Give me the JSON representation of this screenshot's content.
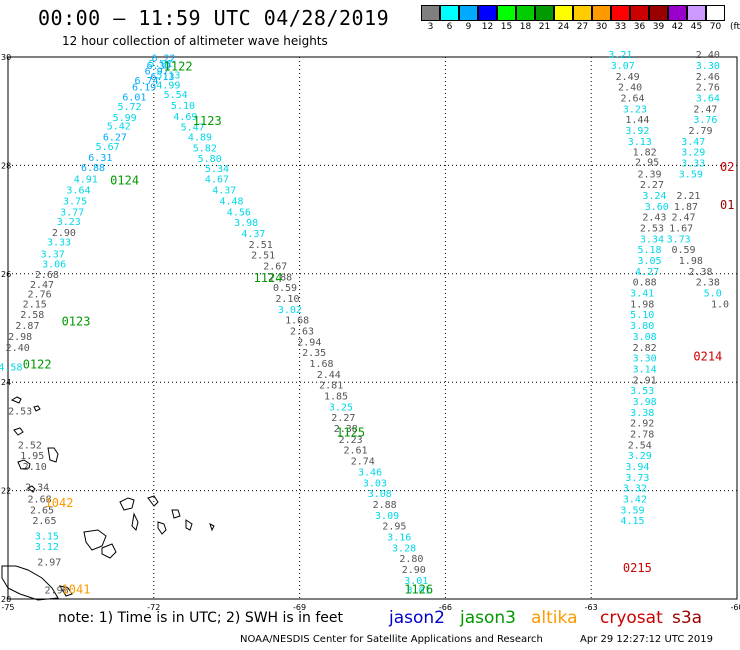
{
  "header": {
    "title": "00:00 – 11:59 UTC 04/28/2019",
    "subtitle": "12 hour collection of altimeter wave heights"
  },
  "color_scale": {
    "labels": [
      "3",
      "6",
      "9",
      "12",
      "15",
      "18",
      "21",
      "24",
      "27",
      "30",
      "33",
      "36",
      "39",
      "42",
      "45",
      "70"
    ],
    "unit": "(ft)",
    "colors": [
      "#7f7f7f",
      "#00ffff",
      "#00aaff",
      "#0000ff",
      "#00ff00",
      "#00cc00",
      "#009900",
      "#ffff00",
      "#ffcc00",
      "#ff9900",
      "#ff0000",
      "#cc0000",
      "#990000",
      "#9900cc",
      "#cc99ff",
      "#ffffff"
    ]
  },
  "axes": {
    "lat_labels": [
      "30",
      "28",
      "26",
      "24",
      "22",
      "20"
    ],
    "lon_labels": [
      "-75",
      "-72",
      "-69",
      "-66",
      "-63",
      "-60"
    ]
  },
  "satellites": [
    {
      "name": "jason2",
      "color": "#0000cc"
    },
    {
      "name": "jason3",
      "color": "#009900"
    },
    {
      "name": "altika",
      "color": "#ff9900"
    },
    {
      "name": "cryosat",
      "color": "#cc0000"
    },
    {
      "name": "s3a",
      "color": "#990000"
    }
  ],
  "footer": {
    "note": "note: 1) Time is in UTC; 2) SWH is in feet",
    "credit": "NOAA/NESDIS Center for Satellite Applications and Research",
    "stamp": "Apr 29 12:27:12 UTC 2019"
  },
  "chart_data": {
    "type": "scatter",
    "title": "00:00 – 11:59 UTC 04/28/2019",
    "subtitle": "12 hour collection of altimeter wave heights",
    "xlabel": "",
    "ylabel": "",
    "xlim": [
      -75,
      -60
    ],
    "ylim": [
      20,
      30
    ],
    "grid": true,
    "time_labels": [
      {
        "text": "1122",
        "lon": -71.5,
        "lat": 29.75,
        "color": "#009900"
      },
      {
        "text": "1123",
        "lon": -70.9,
        "lat": 28.75,
        "color": "#009900"
      },
      {
        "text": "0124",
        "lon": -72.6,
        "lat": 27.65,
        "color": "#009900"
      },
      {
        "text": "1124",
        "lon": -69.65,
        "lat": 25.85,
        "color": "#009900"
      },
      {
        "text": "0123",
        "lon": -73.6,
        "lat": 25.05,
        "color": "#009900"
      },
      {
        "text": "0122",
        "lon": -74.4,
        "lat": 24.25,
        "color": "#009900"
      },
      {
        "text": "1125",
        "lon": -67.95,
        "lat": 23.0,
        "color": "#009900"
      },
      {
        "text": "1042",
        "lon": -73.95,
        "lat": 21.7,
        "color": "#ff9900"
      },
      {
        "text": "1041",
        "lon": -73.6,
        "lat": 20.1,
        "color": "#ff9900"
      },
      {
        "text": "1126",
        "lon": -66.55,
        "lat": 20.1,
        "color": "#009900"
      },
      {
        "text": "0215",
        "lon": -62.05,
        "lat": 20.5,
        "color": "#cc0000"
      },
      {
        "text": "0214",
        "lon": -60.6,
        "lat": 24.4,
        "color": "#cc0000"
      },
      {
        "text": "02",
        "lon": -60.2,
        "lat": 27.9,
        "color": "#cc0000"
      },
      {
        "text": "01",
        "lon": -60.2,
        "lat": 27.2,
        "color": "#990000"
      }
    ],
    "series": [
      {
        "name": "jason3 ascending pass (0122-0124)",
        "color_mode": "swh",
        "points": [
          [
            -71.8,
            29.92,
            "6.22"
          ],
          [
            -71.86,
            29.82,
            "5.91"
          ],
          [
            -71.9,
            29.78,
            "6.30"
          ],
          [
            -71.94,
            29.68,
            "6.97"
          ],
          [
            -71.82,
            29.58,
            "6.13"
          ],
          [
            -72.15,
            29.5,
            "6.74"
          ],
          [
            -72.2,
            29.38,
            "6.19"
          ],
          [
            -72.4,
            29.2,
            "6.01"
          ],
          [
            -72.5,
            29.02,
            "5.72"
          ],
          [
            -72.6,
            28.82,
            "5.99"
          ],
          [
            -72.72,
            28.66,
            "5.42"
          ],
          [
            -72.8,
            28.46,
            "6.27"
          ],
          [
            -72.95,
            28.28,
            "5.67"
          ],
          [
            -73.1,
            28.08,
            "6.31"
          ],
          [
            -73.25,
            27.9,
            "6.88"
          ],
          [
            -73.4,
            27.68,
            "4.91"
          ],
          [
            -73.55,
            27.48,
            "3.64"
          ],
          [
            -73.62,
            27.28,
            "3.75"
          ],
          [
            -73.68,
            27.08,
            "3.77"
          ],
          [
            -73.75,
            26.9,
            "3.23"
          ],
          [
            -73.85,
            26.7,
            "2.90"
          ],
          [
            -73.95,
            26.52,
            "3.33"
          ],
          [
            -74.08,
            26.3,
            "3.37"
          ],
          [
            -74.05,
            26.12,
            "3.06"
          ],
          [
            -74.2,
            25.92,
            "2.68"
          ],
          [
            -74.3,
            25.74,
            "2.47"
          ],
          [
            -74.35,
            25.56,
            "2.76"
          ],
          [
            -74.45,
            25.38,
            "2.15"
          ],
          [
            -74.5,
            25.18,
            "2.58"
          ],
          [
            -74.6,
            24.98,
            "2.87"
          ],
          [
            -74.75,
            24.78,
            "2.98"
          ],
          [
            -74.8,
            24.58,
            "2.40"
          ],
          [
            -74.95,
            24.22,
            "4.58"
          ]
        ]
      },
      {
        "name": "jason3 descending pass (1122-1126)",
        "color_mode": "swh",
        "points": [
          [
            -71.7,
            29.6,
            "5.13"
          ],
          [
            -71.7,
            29.42,
            "4.99"
          ],
          [
            -71.55,
            29.24,
            "5.54"
          ],
          [
            -71.4,
            29.04,
            "5.10"
          ],
          [
            -71.35,
            28.84,
            "4.69"
          ],
          [
            -71.2,
            28.64,
            "5.47"
          ],
          [
            -71.05,
            28.46,
            "4.89"
          ],
          [
            -70.95,
            28.26,
            "5.82"
          ],
          [
            -70.85,
            28.06,
            "5.80"
          ],
          [
            -70.7,
            27.88,
            "5.34"
          ],
          [
            -70.7,
            27.68,
            "4.67"
          ],
          [
            -70.55,
            27.48,
            "4.37"
          ],
          [
            -70.4,
            27.28,
            "4.48"
          ],
          [
            -70.25,
            27.08,
            "4.56"
          ],
          [
            -70.1,
            26.88,
            "3.98"
          ],
          [
            -69.95,
            26.68,
            "4.37"
          ],
          [
            -69.8,
            26.48,
            "2.51"
          ],
          [
            -69.75,
            26.28,
            "2.51"
          ],
          [
            -69.5,
            26.08,
            "2.67"
          ],
          [
            -69.4,
            25.88,
            "2.88"
          ],
          [
            -69.3,
            25.68,
            "0.59"
          ],
          [
            -69.25,
            25.48,
            "2.10"
          ],
          [
            -69.2,
            25.28,
            "3.02"
          ],
          [
            -69.05,
            25.08,
            "1.68"
          ],
          [
            -68.95,
            24.88,
            "2.63"
          ],
          [
            -68.8,
            24.68,
            "2.94"
          ],
          [
            -68.7,
            24.48,
            "2.35"
          ],
          [
            -68.55,
            24.28,
            "1.68"
          ],
          [
            -68.4,
            24.08,
            "2.44"
          ],
          [
            -68.35,
            23.88,
            "2.81"
          ],
          [
            -68.25,
            23.68,
            "1.85"
          ],
          [
            -68.15,
            23.48,
            "3.25"
          ],
          [
            -68.1,
            23.28,
            "2.27"
          ],
          [
            -68.05,
            23.08,
            "2.38"
          ],
          [
            -67.95,
            22.88,
            "2.23"
          ],
          [
            -67.85,
            22.68,
            "2.61"
          ],
          [
            -67.7,
            22.48,
            "2.74"
          ],
          [
            -67.55,
            22.28,
            "3.46"
          ],
          [
            -67.45,
            22.08,
            "3.03"
          ],
          [
            -67.35,
            21.88,
            "3.08"
          ],
          [
            -67.25,
            21.68,
            "2.88"
          ],
          [
            -67.2,
            21.48,
            "3.09"
          ],
          [
            -67.05,
            21.28,
            "2.95"
          ],
          [
            -66.95,
            21.08,
            "3.16"
          ],
          [
            -66.85,
            20.88,
            "3.28"
          ],
          [
            -66.7,
            20.68,
            "2.80"
          ],
          [
            -66.65,
            20.48,
            "2.90"
          ],
          [
            -66.6,
            20.28,
            "3.01"
          ],
          [
            -66.55,
            20.1,
            "3.01"
          ]
        ]
      },
      {
        "name": "altika pass (1041-1042)",
        "color_mode": "swh",
        "points": [
          [
            -74.75,
            23.4,
            "2.53"
          ],
          [
            -74.55,
            22.78,
            "2.52"
          ],
          [
            -74.5,
            22.58,
            "1.95"
          ],
          [
            -74.45,
            22.38,
            "2.10"
          ],
          [
            -74.4,
            22.0,
            "2.34"
          ],
          [
            -74.35,
            21.78,
            "2.68"
          ],
          [
            -74.3,
            21.58,
            "2.65"
          ],
          [
            -74.25,
            21.38,
            "2.65"
          ],
          [
            -74.2,
            21.1,
            "3.15"
          ],
          [
            -74.2,
            20.9,
            "3.12"
          ],
          [
            -74.15,
            20.62,
            "2.97"
          ],
          [
            -74.0,
            20.1,
            "2.96"
          ]
        ]
      },
      {
        "name": "east pass (0214-0215)",
        "color_mode": "swh",
        "points": [
          [
            -62.4,
            29.98,
            "3.21"
          ],
          [
            -62.35,
            29.78,
            "3.07"
          ],
          [
            -62.25,
            29.58,
            "2.49"
          ],
          [
            -62.2,
            29.38,
            "2.40"
          ],
          [
            -62.15,
            29.18,
            "2.64"
          ],
          [
            -62.1,
            28.98,
            "3.23"
          ],
          [
            -62.05,
            28.78,
            "1.44"
          ],
          [
            -62.05,
            28.58,
            "3.92"
          ],
          [
            -62.0,
            28.38,
            "3.13"
          ],
          [
            -61.9,
            28.18,
            "1.82"
          ],
          [
            -61.85,
            28.0,
            "2.95"
          ],
          [
            -61.8,
            27.78,
            "2.39"
          ],
          [
            -61.75,
            27.58,
            "2.27"
          ],
          [
            -61.7,
            27.38,
            "3.24"
          ],
          [
            -61.65,
            27.18,
            "3.60"
          ],
          [
            -61.7,
            26.98,
            "2.43"
          ],
          [
            -61.75,
            26.78,
            "2.53"
          ],
          [
            -61.75,
            26.58,
            "3.34"
          ],
          [
            -61.8,
            26.38,
            "5.18"
          ],
          [
            -61.8,
            26.18,
            "3.05"
          ],
          [
            -61.85,
            25.98,
            "4.27"
          ],
          [
            -61.9,
            25.78,
            "0.88"
          ],
          [
            -61.95,
            25.58,
            "3.41"
          ],
          [
            -61.95,
            25.38,
            "1.98"
          ],
          [
            -61.95,
            25.18,
            "5.10"
          ],
          [
            -61.95,
            24.98,
            "3.80"
          ],
          [
            -61.9,
            24.78,
            "3.08"
          ],
          [
            -61.9,
            24.58,
            "2.82"
          ],
          [
            -61.9,
            24.38,
            "3.30"
          ],
          [
            -61.9,
            24.18,
            "3.14"
          ],
          [
            -61.9,
            23.98,
            "2.91"
          ],
          [
            -61.95,
            23.78,
            "3.53"
          ],
          [
            -61.9,
            23.58,
            "3.98"
          ],
          [
            -61.95,
            23.38,
            "3.38"
          ],
          [
            -61.95,
            23.18,
            "2.92"
          ],
          [
            -61.95,
            22.98,
            "2.78"
          ],
          [
            -62.0,
            22.78,
            "2.54"
          ],
          [
            -62.0,
            22.58,
            "3.29"
          ],
          [
            -62.05,
            22.38,
            "3.94"
          ],
          [
            -62.05,
            22.18,
            "3.73"
          ],
          [
            -62.1,
            21.98,
            "3.32"
          ],
          [
            -62.1,
            21.78,
            "3.42"
          ],
          [
            -62.15,
            21.58,
            "3.59"
          ],
          [
            -62.15,
            21.38,
            "4.15"
          ]
        ]
      },
      {
        "name": "far east pass",
        "color_mode": "swh",
        "points": [
          [
            -60.6,
            29.98,
            "2.40"
          ],
          [
            -60.6,
            29.78,
            "3.30"
          ],
          [
            -60.6,
            29.58,
            "2.46"
          ],
          [
            -60.6,
            29.38,
            "2.76"
          ],
          [
            -60.6,
            29.18,
            "3.64"
          ],
          [
            -60.65,
            28.98,
            "2.47"
          ],
          [
            -60.65,
            28.78,
            "3.76"
          ],
          [
            -60.75,
            28.58,
            "2.79"
          ],
          [
            -60.9,
            28.38,
            "3.47"
          ],
          [
            -60.9,
            28.18,
            "3.29"
          ],
          [
            -60.9,
            27.98,
            "3.33"
          ],
          [
            -60.95,
            27.78,
            "3.59"
          ],
          [
            -61.0,
            27.38,
            "2.21"
          ],
          [
            -61.05,
            27.18,
            "1.87"
          ],
          [
            -61.1,
            26.98,
            "2.47"
          ],
          [
            -61.15,
            26.78,
            "1.67"
          ],
          [
            -61.2,
            26.58,
            "3.73"
          ],
          [
            -61.1,
            26.38,
            "0.59"
          ],
          [
            -60.95,
            26.18,
            "1.98"
          ],
          [
            -60.75,
            25.98,
            "2.38"
          ],
          [
            -60.6,
            25.78,
            "2.38"
          ],
          [
            -60.5,
            25.58,
            "5.0"
          ],
          [
            -60.35,
            25.38,
            "1.0"
          ]
        ]
      }
    ]
  }
}
